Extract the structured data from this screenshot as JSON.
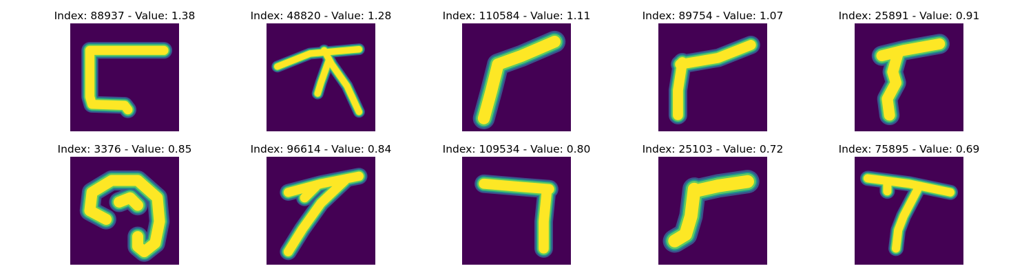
{
  "figure": {
    "background_color": "#440154",
    "colormap": [
      "#440154",
      "#3b528b",
      "#21918c",
      "#5ec962",
      "#fde725"
    ],
    "panels": [
      {
        "title": "Index: 88937 - Value: 1.38",
        "glyph": "open-rectangle-stroke",
        "strokes": [
          [
            [
              0.86,
              0.25
            ],
            [
              0.18,
              0.25
            ],
            [
              0.18,
              0.68
            ],
            [
              0.2,
              0.75
            ],
            [
              0.5,
              0.76
            ],
            [
              0.53,
              0.8
            ]
          ]
        ],
        "stroke_width": 0.1
      },
      {
        "title": "Index: 48820 - Value: 1.28",
        "glyph": "branching-stroke",
        "strokes": [
          [
            [
              0.1,
              0.4
            ],
            [
              0.4,
              0.28
            ],
            [
              0.85,
              0.24
            ]
          ],
          [
            [
              0.53,
              0.25
            ],
            [
              0.6,
              0.38
            ],
            [
              0.74,
              0.58
            ],
            [
              0.85,
              0.82
            ]
          ],
          [
            [
              0.57,
              0.35
            ],
            [
              0.5,
              0.55
            ],
            [
              0.47,
              0.65
            ]
          ]
        ],
        "stroke_width": 0.07
      },
      {
        "title": "Index: 110584 - Value: 1.11",
        "glyph": "diagonal-seven-stroke",
        "strokes": [
          [
            [
              0.85,
              0.17
            ],
            [
              0.55,
              0.3
            ],
            [
              0.33,
              0.38
            ]
          ],
          [
            [
              0.33,
              0.38
            ],
            [
              0.27,
              0.62
            ],
            [
              0.2,
              0.88
            ]
          ]
        ],
        "stroke_width": 0.13
      },
      {
        "title": "Index: 89754 - Value: 1.07",
        "glyph": "angled-stroke",
        "strokes": [
          [
            [
              0.85,
              0.2
            ],
            [
              0.55,
              0.32
            ],
            [
              0.2,
              0.38
            ]
          ],
          [
            [
              0.22,
              0.36
            ],
            [
              0.18,
              0.62
            ],
            [
              0.18,
              0.85
            ]
          ]
        ],
        "stroke_width": 0.11
      },
      {
        "title": "Index: 25891 - Value: 0.91",
        "glyph": "wavy-vertical-stroke",
        "strokes": [
          [
            [
              0.78,
              0.19
            ],
            [
              0.45,
              0.25
            ],
            [
              0.25,
              0.3
            ]
          ],
          [
            [
              0.4,
              0.27
            ],
            [
              0.35,
              0.45
            ],
            [
              0.38,
              0.55
            ],
            [
              0.3,
              0.7
            ],
            [
              0.32,
              0.85
            ]
          ]
        ],
        "stroke_width": 0.12
      },
      {
        "title": "Index: 3376 - Value: 0.85",
        "glyph": "curled-stroke",
        "strokes": [
          [
            [
              0.33,
              0.58
            ],
            [
              0.18,
              0.5
            ],
            [
              0.2,
              0.33
            ],
            [
              0.38,
              0.22
            ],
            [
              0.62,
              0.22
            ],
            [
              0.8,
              0.38
            ],
            [
              0.82,
              0.6
            ],
            [
              0.78,
              0.8
            ],
            [
              0.68,
              0.88
            ],
            [
              0.62,
              0.83
            ],
            [
              0.62,
              0.74
            ]
          ],
          [
            [
              0.45,
              0.42
            ],
            [
              0.55,
              0.38
            ],
            [
              0.62,
              0.45
            ]
          ]
        ],
        "stroke_width": 0.12
      },
      {
        "title": "Index: 96614 - Value: 0.84",
        "glyph": "long-seven-stroke",
        "strokes": [
          [
            [
              0.2,
              0.33
            ],
            [
              0.5,
              0.25
            ],
            [
              0.85,
              0.18
            ]
          ],
          [
            [
              0.72,
              0.22
            ],
            [
              0.5,
              0.43
            ],
            [
              0.33,
              0.67
            ],
            [
              0.2,
              0.88
            ]
          ],
          [
            [
              0.45,
              0.28
            ],
            [
              0.35,
              0.38
            ]
          ]
        ],
        "stroke_width": 0.1
      },
      {
        "title": "Index: 109534 - Value: 0.80",
        "glyph": "seven-stroke",
        "strokes": [
          [
            [
              0.2,
              0.25
            ],
            [
              0.55,
              0.28
            ],
            [
              0.8,
              0.3
            ]
          ],
          [
            [
              0.78,
              0.3
            ],
            [
              0.75,
              0.6
            ],
            [
              0.75,
              0.85
            ]
          ]
        ],
        "stroke_width": 0.11
      },
      {
        "title": "Index: 25103 - Value: 0.72",
        "glyph": "angled-stroke",
        "strokes": [
          [
            [
              0.82,
              0.23
            ],
            [
              0.55,
              0.27
            ],
            [
              0.33,
              0.32
            ]
          ],
          [
            [
              0.33,
              0.3
            ],
            [
              0.3,
              0.55
            ],
            [
              0.25,
              0.72
            ],
            [
              0.15,
              0.78
            ]
          ]
        ],
        "stroke_width": 0.14
      },
      {
        "title": "Index: 75895 - Value: 0.69",
        "glyph": "seven-stroke",
        "strokes": [
          [
            [
              0.12,
              0.2
            ],
            [
              0.5,
              0.25
            ],
            [
              0.88,
              0.33
            ]
          ],
          [
            [
              0.58,
              0.3
            ],
            [
              0.45,
              0.55
            ],
            [
              0.4,
              0.68
            ],
            [
              0.38,
              0.85
            ]
          ],
          [
            [
              0.3,
              0.25
            ],
            [
              0.3,
              0.32
            ]
          ]
        ],
        "stroke_width": 0.09
      }
    ]
  }
}
